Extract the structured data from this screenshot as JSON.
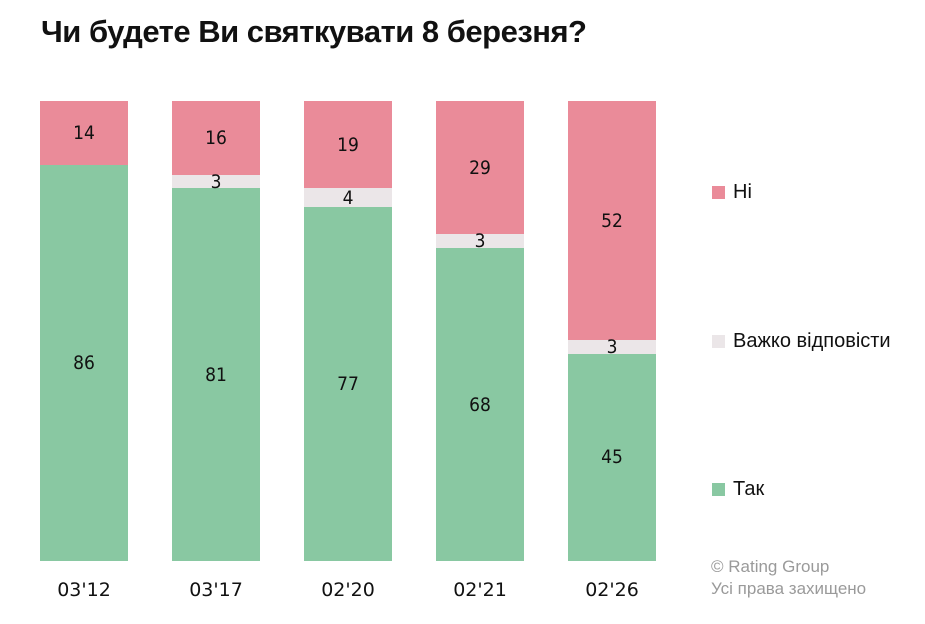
{
  "title": "Чи будете Ви святкувати 8 березня?",
  "colors": {
    "no": "#ea8b99",
    "hard": "#ebe6e8",
    "yes": "#89c8a2"
  },
  "legend": [
    {
      "key": "no",
      "label": "Ні"
    },
    {
      "key": "hard",
      "label": "Важко відповісти"
    },
    {
      "key": "yes",
      "label": "Так"
    }
  ],
  "credit": {
    "line1": "© Rating Group",
    "line2": "Усі права захищено"
  },
  "chart_data": {
    "type": "bar",
    "stacked": true,
    "percent": true,
    "title": "Чи будете Ви святкувати 8 березня?",
    "xlabel": "",
    "ylabel": "",
    "ylim": [
      0,
      100
    ],
    "grid": false,
    "legend_position": "right",
    "categories": [
      "03'12",
      "03'17",
      "02'20",
      "02'21",
      "02'26"
    ],
    "series": [
      {
        "name": "Так",
        "values": [
          86,
          81,
          77,
          68,
          45
        ]
      },
      {
        "name": "Важко відповісти",
        "values": [
          0,
          3,
          4,
          3,
          3
        ]
      },
      {
        "name": "Ні",
        "values": [
          14,
          16,
          19,
          29,
          52
        ]
      }
    ],
    "labels": {
      "yes": [
        "86",
        "81",
        "77",
        "68",
        "45"
      ],
      "hard": [
        "",
        "3",
        "4",
        "3",
        "3"
      ],
      "no": [
        "14",
        "16",
        "19",
        "29",
        "52"
      ]
    }
  }
}
